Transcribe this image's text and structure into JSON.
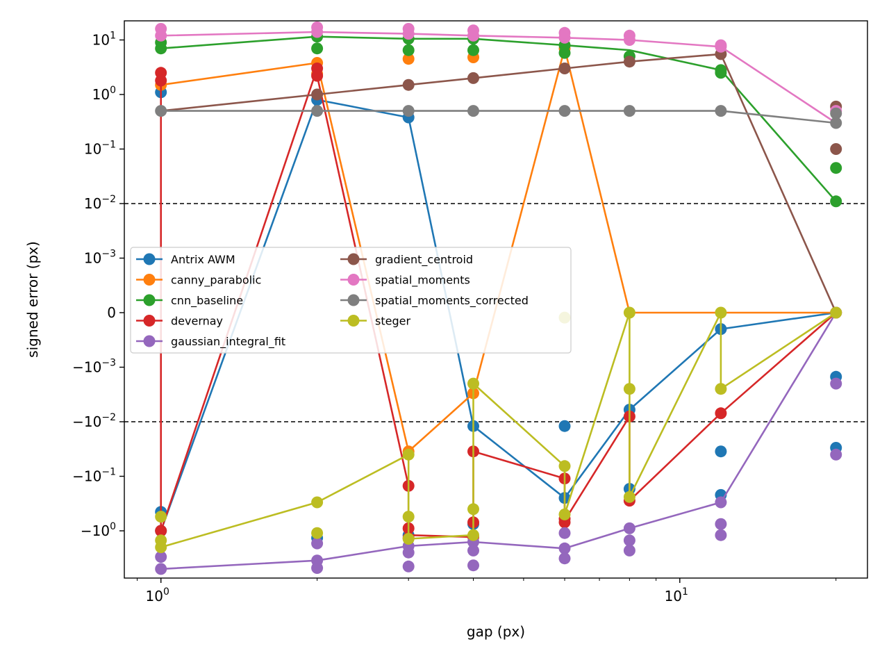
{
  "chart_data": {
    "type": "line",
    "title": "",
    "xlabel": "gap (px)",
    "ylabel": "signed error (px)",
    "x_scale": "log",
    "y_scale": "symlog",
    "y_linthresh": 0.001,
    "x_range": [
      0.85,
      23.0
    ],
    "y_range": [
      -5.0,
      18.0
    ],
    "x_ticks": [
      {
        "value": 1,
        "label": "10",
        "exp": "0"
      },
      {
        "value": 10,
        "label": "10",
        "exp": "1"
      }
    ],
    "y_ticks": [
      {
        "value": 10,
        "label": "10",
        "exp": "1"
      },
      {
        "value": 1,
        "label": "10",
        "exp": "0"
      },
      {
        "value": 0.1,
        "label": "10",
        "exp": "−1"
      },
      {
        "value": 0.01,
        "label": "10",
        "exp": "−2"
      },
      {
        "value": 0.001,
        "label": "10",
        "exp": "−3"
      },
      {
        "value": 0,
        "label": "0",
        "exp": ""
      },
      {
        "value": -0.001,
        "label": "−10",
        "exp": "−3"
      },
      {
        "value": -0.01,
        "label": "−10",
        "exp": "−2"
      },
      {
        "value": -0.1,
        "label": "−10",
        "exp": "−1"
      },
      {
        "value": -1,
        "label": "−10",
        "exp": "0"
      }
    ],
    "reference_lines": [
      0.01,
      -0.01
    ],
    "legend": {
      "placement": "center-left",
      "columns": 2
    },
    "grid": false,
    "series": [
      {
        "name": "Antrix AWM",
        "color": "#1f77b4",
        "line": [
          [
            1,
            -1.0
          ],
          [
            2,
            0.8
          ],
          [
            3,
            0.38
          ],
          [
            4,
            -0.012
          ],
          [
            6,
            -0.25
          ],
          [
            8,
            -0.006
          ],
          [
            12,
            -0.0003
          ],
          [
            20,
            0
          ]
        ],
        "points": [
          [
            1,
            1.1
          ],
          [
            1,
            -0.45
          ],
          [
            1,
            -1.0
          ],
          [
            2,
            0.8
          ],
          [
            2,
            -1.35
          ],
          [
            3,
            0.38
          ],
          [
            3,
            -1.2
          ],
          [
            4,
            -0.012
          ],
          [
            4,
            -0.75
          ],
          [
            6,
            -0.012
          ],
          [
            6,
            -0.25
          ],
          [
            8,
            -0.006
          ],
          [
            8,
            -0.17
          ],
          [
            12,
            -0.0003
          ],
          [
            12,
            -0.035
          ],
          [
            12,
            -0.22
          ],
          [
            20,
            -0.0015
          ],
          [
            20,
            -0.03
          ]
        ]
      },
      {
        "name": "canny_parabolic",
        "color": "#ff7f0e",
        "line": [
          [
            1,
            1.5
          ],
          [
            2,
            3.8
          ],
          [
            3,
            -0.035
          ],
          [
            4,
            -0.003
          ],
          [
            6,
            7.0
          ],
          [
            8,
            0
          ],
          [
            12,
            0
          ],
          [
            20,
            0
          ]
        ],
        "points": [
          [
            1,
            1.5
          ],
          [
            2,
            3.8
          ],
          [
            2,
            2.4
          ],
          [
            3,
            4.5
          ],
          [
            3,
            -0.035
          ],
          [
            4,
            4.8
          ],
          [
            4,
            -0.003
          ],
          [
            6,
            7.0
          ]
        ]
      },
      {
        "name": "cnn_baseline",
        "color": "#2ca02c",
        "line": [
          [
            1,
            7.0
          ],
          [
            2,
            11.5
          ],
          [
            3,
            10.5
          ],
          [
            4,
            10.5
          ],
          [
            6,
            8.0
          ],
          [
            8,
            6.5
          ],
          [
            12,
            2.8
          ],
          [
            20,
            0.011
          ]
        ],
        "points": [
          [
            1,
            7.0
          ],
          [
            1,
            9.0
          ],
          [
            2,
            7.0
          ],
          [
            2,
            11.5
          ],
          [
            3,
            6.5
          ],
          [
            3,
            10.5
          ],
          [
            4,
            6.5
          ],
          [
            4,
            10.5
          ],
          [
            6,
            5.8
          ],
          [
            6,
            8.0
          ],
          [
            8,
            5.0
          ],
          [
            12,
            2.5
          ],
          [
            12,
            2.8
          ],
          [
            20,
            0.045
          ],
          [
            20,
            0.011
          ]
        ]
      },
      {
        "name": "devernay",
        "color": "#d62728",
        "line": [
          [
            1,
            2.5
          ],
          [
            1,
            -1.0
          ],
          [
            2,
            3.0
          ],
          [
            2,
            2.2
          ],
          [
            3,
            -0.15
          ],
          [
            3,
            -1.2
          ],
          [
            4,
            -1.3
          ],
          [
            4,
            -0.035
          ],
          [
            6,
            -0.11
          ],
          [
            6,
            -0.65
          ],
          [
            8,
            -0.008
          ],
          [
            8,
            -0.28
          ],
          [
            12,
            -0.007
          ],
          [
            20,
            0
          ]
        ],
        "points": [
          [
            1,
            2.5
          ],
          [
            1,
            1.8
          ],
          [
            1,
            -1.0
          ],
          [
            2,
            3.0
          ],
          [
            2,
            2.2
          ],
          [
            3,
            -0.15
          ],
          [
            3,
            -0.9
          ],
          [
            3,
            -1.35
          ],
          [
            4,
            -0.035
          ],
          [
            4,
            -0.7
          ],
          [
            4,
            -1.3
          ],
          [
            6,
            -0.11
          ],
          [
            6,
            -0.6
          ],
          [
            6,
            -0.7
          ],
          [
            8,
            -0.008
          ],
          [
            8,
            -0.28
          ],
          [
            12,
            -0.007
          ],
          [
            20,
            0
          ]
        ]
      },
      {
        "name": "gaussian_integral_fit",
        "color": "#9467bd",
        "line": [
          [
            1,
            -5.0
          ],
          [
            2,
            -3.5
          ],
          [
            3,
            -1.9
          ],
          [
            4,
            -1.6
          ],
          [
            6,
            -2.1
          ],
          [
            8,
            -0.9
          ],
          [
            12,
            -0.3
          ],
          [
            20,
            0
          ]
        ],
        "points": [
          [
            1,
            -5.0
          ],
          [
            1,
            -3.0
          ],
          [
            2,
            -3.5
          ],
          [
            2,
            -4.8
          ],
          [
            2,
            -1.7
          ],
          [
            3,
            -1.9
          ],
          [
            3,
            -2.5
          ],
          [
            3,
            -4.5
          ],
          [
            4,
            -1.6
          ],
          [
            4,
            -2.3
          ],
          [
            4,
            -4.3
          ],
          [
            6,
            -2.1
          ],
          [
            6,
            -1.1
          ],
          [
            6,
            -3.2
          ],
          [
            8,
            -0.9
          ],
          [
            8,
            -1.5
          ],
          [
            8,
            -2.3
          ],
          [
            12,
            -0.3
          ],
          [
            12,
            -0.75
          ],
          [
            12,
            -1.2
          ],
          [
            20,
            -0.002
          ],
          [
            20,
            -0.04
          ]
        ]
      },
      {
        "name": "gradient_centroid",
        "color": "#8c564b",
        "line": [
          [
            1,
            0.5
          ],
          [
            2,
            1.0
          ],
          [
            3,
            1.5
          ],
          [
            4,
            2.0
          ],
          [
            6,
            3.0
          ],
          [
            8,
            4.0
          ],
          [
            12,
            5.5
          ],
          [
            20,
            0
          ]
        ],
        "points": [
          [
            2,
            1.0
          ],
          [
            3,
            1.5
          ],
          [
            4,
            2.0
          ],
          [
            6,
            3.0
          ],
          [
            8,
            4.0
          ],
          [
            12,
            5.5
          ],
          [
            20,
            0.6
          ],
          [
            20,
            0.1
          ],
          [
            20,
            0
          ]
        ]
      },
      {
        "name": "spatial_moments",
        "color": "#e377c2",
        "line": [
          [
            1,
            12.0
          ],
          [
            2,
            14.0
          ],
          [
            3,
            13.0
          ],
          [
            4,
            12.0
          ],
          [
            6,
            11.0
          ],
          [
            8,
            10.0
          ],
          [
            12,
            7.5
          ],
          [
            20,
            0.3
          ]
        ],
        "points": [
          [
            1,
            12.0
          ],
          [
            1,
            16.0
          ],
          [
            2,
            14.0
          ],
          [
            2,
            17.0
          ],
          [
            3,
            13.0
          ],
          [
            3,
            16.0
          ],
          [
            4,
            12.0
          ],
          [
            4,
            15.0
          ],
          [
            6,
            11.0
          ],
          [
            6,
            13.5
          ],
          [
            8,
            10.0
          ],
          [
            8,
            12.0
          ],
          [
            12,
            7.5
          ],
          [
            12,
            8.0
          ],
          [
            20,
            0.5
          ]
        ]
      },
      {
        "name": "spatial_moments_corrected",
        "color": "#7f7f7f",
        "line": [
          [
            1,
            0.5
          ],
          [
            2,
            0.5
          ],
          [
            3,
            0.5
          ],
          [
            4,
            0.5
          ],
          [
            6,
            0.5
          ],
          [
            8,
            0.5
          ],
          [
            12,
            0.5
          ],
          [
            20,
            0.3
          ]
        ],
        "points": [
          [
            1,
            0.5
          ],
          [
            2,
            0.5
          ],
          [
            3,
            0.5
          ],
          [
            4,
            0.5
          ],
          [
            6,
            0.5
          ],
          [
            8,
            0.5
          ],
          [
            12,
            0.5
          ],
          [
            20,
            0.3
          ],
          [
            20,
            0.45
          ]
        ]
      },
      {
        "name": "steger",
        "color": "#bcbd22",
        "line": [
          [
            1,
            -2.0
          ],
          [
            2,
            -0.3
          ],
          [
            3,
            -0.04
          ],
          [
            3,
            -1.4
          ],
          [
            4,
            -1.2
          ],
          [
            4,
            -0.002
          ],
          [
            6,
            -0.065
          ],
          [
            6,
            -0.5
          ],
          [
            8,
            0
          ],
          [
            8,
            -0.24
          ],
          [
            12,
            0
          ],
          [
            12,
            -0.0025
          ],
          [
            20,
            0
          ]
        ],
        "points": [
          [
            1,
            -0.55
          ],
          [
            1,
            -1.5
          ],
          [
            1,
            -2.0
          ],
          [
            2,
            -0.3
          ],
          [
            2,
            -1.1
          ],
          [
            3,
            -0.04
          ],
          [
            3,
            -0.55
          ],
          [
            3,
            -1.4
          ],
          [
            4,
            -0.002
          ],
          [
            4,
            -0.4
          ],
          [
            4,
            -1.2
          ],
          [
            6,
            -9e-05
          ],
          [
            6,
            -0.065
          ],
          [
            6,
            -0.5
          ],
          [
            8,
            0
          ],
          [
            8,
            -0.0025
          ],
          [
            8,
            -0.24
          ],
          [
            12,
            0
          ],
          [
            12,
            -0.0025
          ],
          [
            20,
            0
          ]
        ]
      }
    ]
  }
}
